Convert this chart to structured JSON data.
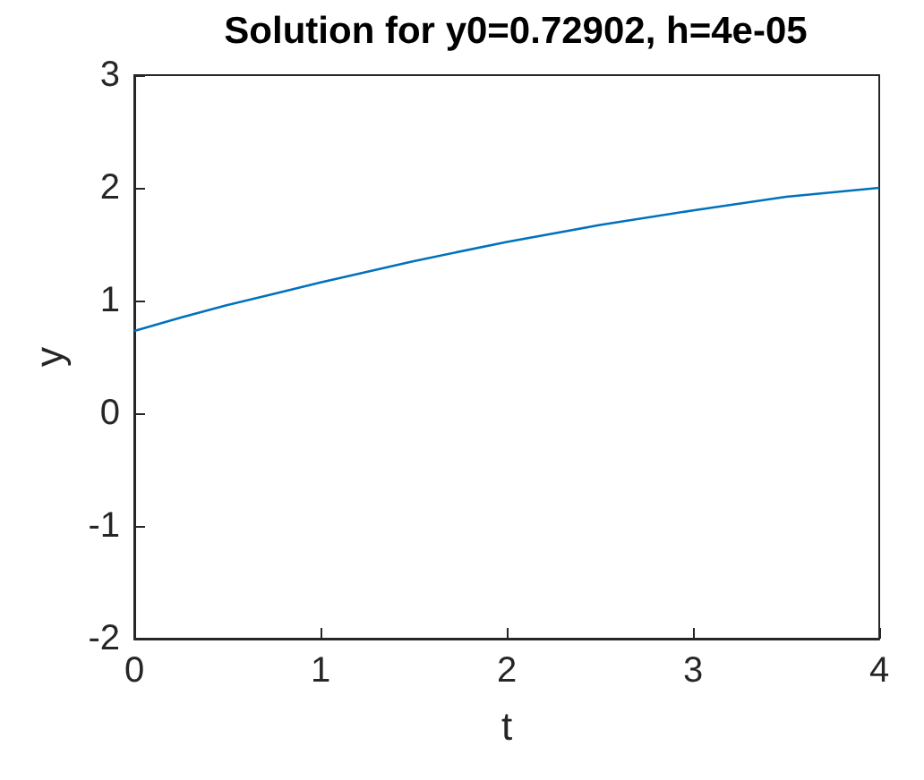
{
  "chart_data": {
    "type": "line",
    "title": "Solution for y0=0.72902, h=4e-05",
    "xlabel": "t",
    "ylabel": "y",
    "x": [
      0,
      0.25,
      0.5,
      0.75,
      1,
      1.5,
      2,
      2.5,
      3,
      3.5,
      4
    ],
    "series": [
      {
        "color": "#0072bd",
        "values": [
          0.73,
          0.85,
          0.96,
          1.06,
          1.16,
          1.35,
          1.52,
          1.67,
          1.8,
          1.92,
          2.0
        ]
      }
    ],
    "xlim": [
      0,
      4
    ],
    "xticks": [
      0,
      1,
      2,
      3,
      4
    ],
    "ylim": [
      -2,
      3
    ],
    "yticks": [
      -2,
      -1,
      0,
      1,
      2,
      3
    ],
    "grid": false,
    "marker": "none",
    "line_style": "solid"
  }
}
